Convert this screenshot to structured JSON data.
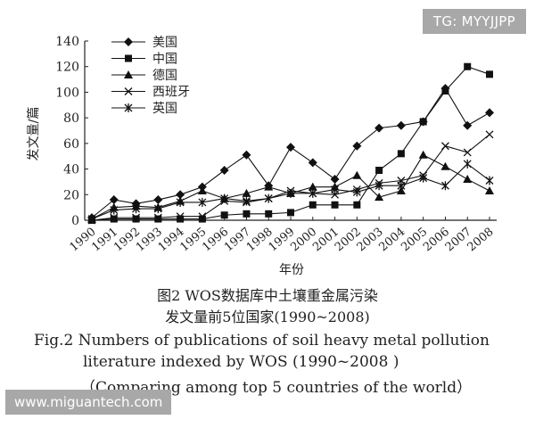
{
  "chart_data": {
    "type": "line",
    "ylabel": "发文量/篇",
    "xlabel": "年份",
    "ylim": [
      0,
      140
    ],
    "yticks": [
      0,
      20,
      40,
      60,
      80,
      100,
      120,
      140
    ],
    "categories": [
      "1990",
      "1991",
      "1992",
      "1993",
      "1994",
      "1995",
      "1996",
      "1997",
      "1998",
      "1999",
      "2000",
      "2001",
      "2002",
      "2003",
      "2004",
      "2005",
      "2006",
      "2007",
      "2008"
    ],
    "legend_position": "top-left",
    "series": [
      {
        "name": "美国",
        "marker": "diamond",
        "values": [
          2,
          16,
          13,
          16,
          20,
          26,
          39,
          51,
          27,
          57,
          45,
          32,
          58,
          72,
          74,
          77,
          103,
          74,
          84
        ]
      },
      {
        "name": "中国",
        "marker": "square",
        "values": [
          0,
          1,
          1,
          1,
          1,
          1,
          4,
          5,
          5,
          6,
          12,
          12,
          12,
          39,
          52,
          77,
          101,
          120,
          114
        ]
      },
      {
        "name": "德国",
        "marker": "triangle",
        "values": [
          1,
          10,
          11,
          10,
          15,
          23,
          17,
          21,
          26,
          21,
          26,
          26,
          35,
          18,
          23,
          51,
          42,
          32,
          23
        ]
      },
      {
        "name": "西班牙",
        "marker": "x",
        "values": [
          0,
          2,
          2,
          2,
          3,
          3,
          15,
          14,
          17,
          23,
          21,
          20,
          24,
          29,
          31,
          35,
          58,
          53,
          67
        ]
      },
      {
        "name": "英国",
        "marker": "star",
        "values": [
          1,
          8,
          9,
          9,
          14,
          14,
          17,
          15,
          17,
          21,
          21,
          24,
          22,
          27,
          27,
          33,
          27,
          44,
          31
        ]
      }
    ]
  },
  "caption": {
    "cn_line1": "图2 WOS数据库中土壤重金属污染",
    "cn_line2": "发文量前5位国家(1990~2008)",
    "en_line1": "Fig.2  Numbers of publications of soil heavy metal pollution",
    "en_line2": "literature indexed by WOS (1990~2008 )",
    "en_line3": "（Comparing among top 5 countries of the world）"
  },
  "watermarks": {
    "top": "TG: MYYJJPP",
    "bottom": "www.miguantech.com"
  }
}
